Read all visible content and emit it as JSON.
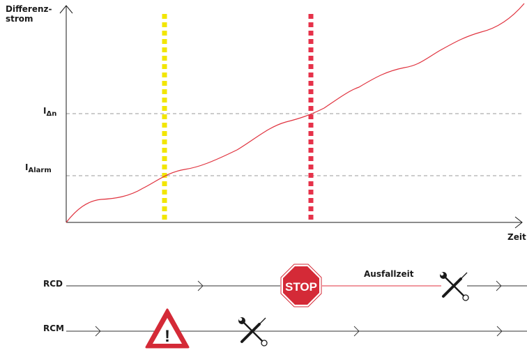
{
  "y_axis_label": "Differenz-\nstrom",
  "x_axis_label": "Zeit",
  "thresholds": {
    "rated_residual": {
      "symbol": "I",
      "subscript": "Δn"
    },
    "alarm": {
      "symbol": "I",
      "subscript": "Alarm"
    }
  },
  "timelines": {
    "rcd": {
      "label": "RCD",
      "stop_sign_text": "STOP",
      "outage_label": "Ausfallzeit"
    },
    "rcm": {
      "label": "RCM",
      "warning_symbol": "!"
    }
  },
  "colors": {
    "curve": "#e0323e",
    "alarm_marker": "#f2e600",
    "trip_marker": "#e6324a",
    "threshold_line": "#9a9a9a",
    "axis": "#1a1a1a",
    "stop_sign": "#d42a37",
    "warning_border": "#d42a37"
  },
  "icons": [
    "stop-sign-icon",
    "warning-triangle-icon",
    "wrench-screwdriver-icon"
  ]
}
